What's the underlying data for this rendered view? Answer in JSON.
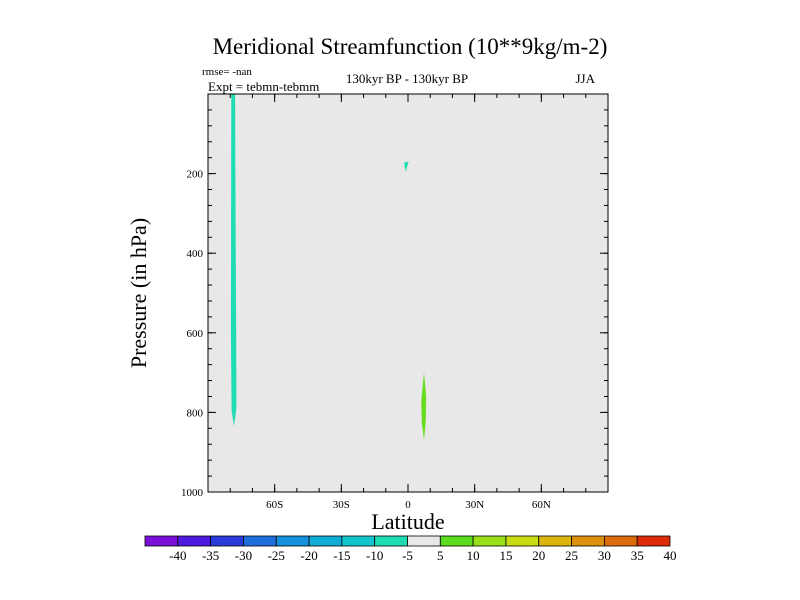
{
  "chart_data": {
    "type": "heatmap",
    "title": "Meridional Streamfunction (10**9kg/m-2)",
    "annotations": {
      "rmse": "rmse= -nan",
      "expt": "Expt = tebmn-tebmm",
      "period": "130kyr BP - 130kyr BP",
      "season": "JJA"
    },
    "xlabel": "Latitude",
    "ylabel": "Pressure (in hPa)",
    "xlim": [
      -90,
      90
    ],
    "ylim": [
      1000,
      0
    ],
    "x_ticks": [
      {
        "value": -60,
        "label": "60S"
      },
      {
        "value": -30,
        "label": "30S"
      },
      {
        "value": 0,
        "label": "0"
      },
      {
        "value": 30,
        "label": "30N"
      },
      {
        "value": 60,
        "label": "60N"
      }
    ],
    "y_ticks": [
      {
        "value": 200,
        "label": "200"
      },
      {
        "value": 400,
        "label": "400"
      },
      {
        "value": 600,
        "label": "600"
      },
      {
        "value": 800,
        "label": "800"
      },
      {
        "value": 1000,
        "label": "1000"
      }
    ],
    "background_color": "#e8e8e8",
    "features": [
      {
        "name": "southern-high-latitude-band",
        "level": -5,
        "color": "#20dcb4",
        "outline": [
          [
            -79.5,
            0
          ],
          [
            -77.8,
            0
          ],
          [
            -77.6,
            330
          ],
          [
            -77.3,
            600
          ],
          [
            -77.2,
            790
          ],
          [
            -78.3,
            835
          ],
          [
            -79.4,
            795
          ],
          [
            -79.7,
            600
          ],
          [
            -79.6,
            300
          ]
        ]
      },
      {
        "name": "equatorial-upper-spot",
        "level": -5,
        "color": "#20dcb4",
        "outline": [
          [
            -1.8,
            172
          ],
          [
            0.3,
            170
          ],
          [
            -0.4,
            183
          ],
          [
            -0.9,
            195
          ],
          [
            -1.5,
            183
          ]
        ]
      },
      {
        "name": "northern-low-level-patch",
        "level": 5,
        "color": "#66dc1e",
        "outline": [
          [
            7.2,
            700
          ],
          [
            8.2,
            760
          ],
          [
            8.0,
            820
          ],
          [
            7.2,
            870
          ],
          [
            6.2,
            825
          ],
          [
            6.0,
            770
          ]
        ]
      }
    ],
    "colorbar": {
      "labels": [
        "-40",
        "-35",
        "-30",
        "-25",
        "-20",
        "-15",
        "-10",
        "-5",
        "5",
        "10",
        "15",
        "20",
        "25",
        "30",
        "35",
        "40"
      ],
      "colors": [
        "#7a10d8",
        "#4e1ae0",
        "#2a3cdc",
        "#1e6edc",
        "#1490dc",
        "#10acd8",
        "#14c4cc",
        "#20dcb4",
        "#e8e8e8",
        "#5cdc1e",
        "#98e01a",
        "#c8dc12",
        "#dcb410",
        "#dc900e",
        "#dc6c0c",
        "#dc2c0a"
      ]
    }
  }
}
